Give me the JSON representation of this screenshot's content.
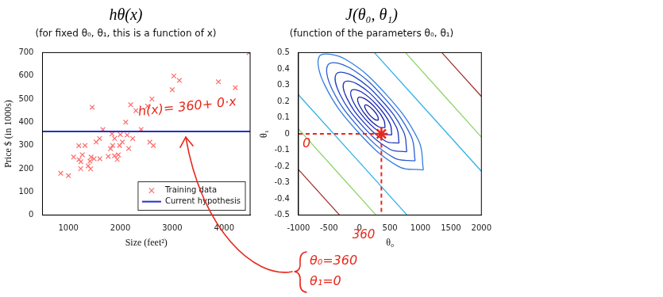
{
  "chart_data": [
    {
      "type": "scatter",
      "title": "hθ(x)",
      "subtitle": "(for fixed θ₀, θ₁, this is a function of x)",
      "x_label": "Size (feet²)",
      "y_label": "Price $ (in 1000s)",
      "xlim": [
        500,
        4500
      ],
      "xticks": [
        1000,
        2000,
        3000,
        4000
      ],
      "ylim": [
        0,
        700
      ],
      "yticks": [
        0,
        100,
        200,
        300,
        400,
        500,
        600,
        700
      ],
      "grid": false,
      "legend": "lower right",
      "series": [
        {
          "name": "Current hypothesis",
          "type": "line",
          "color": "#1f2fd0",
          "line_style": "solid",
          "x": [
            500,
            4500
          ],
          "values": [
            360,
            360
          ]
        },
        {
          "name": "Training data",
          "type": "scatter",
          "color": "#ff6b6b",
          "marker": "x",
          "x": [
            2104,
            1600,
            2400,
            1416,
            3000,
            1985,
            1534,
            1427,
            1380,
            1494,
            1940,
            2000,
            1890,
            4478,
            1268,
            2300,
            1320,
            1236,
            2609,
            3031,
            1767,
            1888,
            1604,
            1962,
            3890,
            1100,
            1458,
            2526,
            2200,
            2637,
            1839,
            1000,
            2040,
            3137,
            1811,
            1437,
            1239,
            2132,
            4215,
            2162,
            1664,
            2238,
            2567,
            1200,
            852,
            1852,
            1203
          ],
          "values": [
            399.9,
            329.9,
            369,
            232,
            539.9,
            299.9,
            314.9,
            199,
            212,
            242.5,
            240,
            347,
            330,
            699.9,
            259.9,
            449.9,
            299.9,
            199.9,
            500,
            599,
            252.9,
            255,
            242.9,
            259.9,
            573.9,
            249.9,
            464.5,
            469,
            475,
            299.9,
            349.9,
            169.9,
            314.9,
            579.9,
            285.9,
            249.9,
            229.9,
            345,
            549,
            287,
            368.5,
            329.9,
            314,
            299,
            179.9,
            299.9,
            239.5
          ]
        }
      ],
      "annotations": [
        "h(x)= 360+ 0·x"
      ]
    },
    {
      "type": "contour",
      "title": "J(θ₀, θ₁)",
      "subtitle": "(function of the parameters θ₀, θ₁)",
      "x_label": "θ₀",
      "y_label": "θ₁",
      "xlim": [
        -1000,
        2000
      ],
      "xticks": [
        -1000,
        -500,
        0,
        500,
        1000,
        1500,
        2000
      ],
      "ylim": [
        -0.5,
        0.5
      ],
      "yticks": [
        -0.5,
        -0.4,
        -0.3,
        -0.2,
        -0.1,
        0,
        0.1,
        0.2,
        0.3,
        0.4,
        0.5
      ],
      "grid": false,
      "series": [
        {
          "type": "scatter",
          "marker": "star",
          "color": "#e8271b",
          "x": [
            360
          ],
          "values": [
            0
          ]
        },
        {
          "type": "line",
          "line_style": "dashed",
          "color": "#e8271b",
          "x": [
            -1000,
            360,
            360
          ],
          "values": [
            0,
            0,
            -0.5
          ]
        }
      ],
      "contours": [
        {
          "color": "#17209e",
          "x": [
            310,
            256,
            169,
            100,
            90,
            144,
            231,
            300,
            310
          ],
          "y": [
            0.084,
            0.087,
            0.115,
            0.152,
            0.176,
            0.173,
            0.145,
            0.108,
            0.084
          ]
        },
        {
          "color": "#1a24a8",
          "x": [
            421,
            312,
            138,
            0,
            -21,
            88,
            262,
            400,
            421
          ],
          "y": [
            0.038,
            0.044,
            0.1,
            0.174,
            0.222,
            0.216,
            0.16,
            0.086,
            0.038
          ]
        },
        {
          "color": "#1b2bb3",
          "x": [
            531,
            369,
            107,
            -100,
            -131,
            31,
            293,
            500,
            531
          ],
          "y": [
            -0.007,
            0.002,
            0.086,
            0.196,
            0.267,
            0.258,
            0.174,
            0.064,
            -0.007
          ]
        },
        {
          "color": "#1f36bd",
          "x": [
            650,
            429,
            74,
            -207,
            -250,
            -29,
            326,
            607,
            650
          ],
          "y": [
            -0.057,
            -0.045,
            0.07,
            0.22,
            0.317,
            0.305,
            0.19,
            0.04,
            -0.057
          ]
        },
        {
          "color": "#2446c8",
          "x": [
            777,
            494,
            39,
            -322,
            -377,
            -94,
            361,
            722,
            777
          ],
          "y": [
            -0.11,
            -0.094,
            0.053,
            0.245,
            0.37,
            0.354,
            0.207,
            0.015,
            -0.11
          ]
        },
        {
          "color": "#2a5fd4",
          "x": [
            913,
            563,
            1,
            -445,
            -513,
            -163,
            399,
            845,
            913
          ],
          "y": [
            -0.166,
            -0.147,
            0.035,
            0.272,
            0.426,
            0.407,
            0.225,
            -0.012,
            -0.166
          ]
        },
        {
          "color": "#2f7fe0",
          "x": [
            1049,
            632,
            -37,
            -568,
            -649,
            -232,
            437,
            968,
            1049
          ],
          "y": [
            -0.222,
            -0.199,
            0.017,
            0.299,
            0.482,
            0.459,
            0.243,
            -0.039,
            -0.222
          ]
        },
        {
          "color": "#30b0ea",
          "x": [
            -1000,
            782
          ],
          "y": [
            0.24,
            -0.5
          ]
        },
        {
          "color": "#30b0ea",
          "x": [
            244,
            2000
          ],
          "y": [
            0.5,
            -0.23
          ]
        },
        {
          "color": "#8fd46a",
          "x": [
            -1000,
            273
          ],
          "y": [
            0.03,
            -0.5
          ]
        },
        {
          "color": "#8fd46a",
          "x": [
            754,
            2000
          ],
          "y": [
            0.5,
            -0.02
          ]
        },
        {
          "color": "#a0302a",
          "x": [
            -1000,
            -325
          ],
          "y": [
            -0.22,
            -0.5
          ]
        },
        {
          "color": "#a0302a",
          "x": [
            1351,
            2000
          ],
          "y": [
            0.5,
            0.23
          ]
        }
      ],
      "annotations": [
        "360",
        "0",
        "θ₀=360",
        "θ₁=0"
      ]
    }
  ]
}
